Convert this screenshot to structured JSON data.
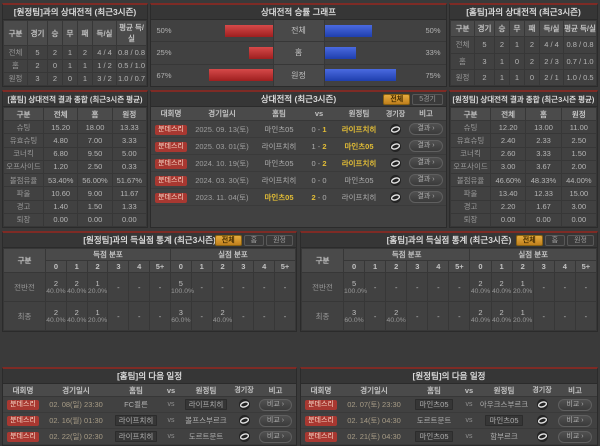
{
  "colors": {
    "accent_maroon": "#7e2b25",
    "bar_red": "#c03030",
    "bar_blue": "#3a5cd8",
    "winner_yellow": "#e2bd36",
    "league_badge": "#a83831",
    "active_filter": "#d9952c"
  },
  "common": {
    "vs": "vs",
    "dash": "-"
  },
  "cols": {
    "league": "대회명",
    "datetime": "경기일시",
    "home": "홈팀",
    "away": "원정팀",
    "venue": "경기장",
    "note": "비고",
    "group": "구분"
  },
  "record_home": {
    "title": "[원정팀]과의 상대전적 (최근3시즌)",
    "headers": [
      "구분",
      "경기",
      "승",
      "무",
      "패",
      "득/실",
      "평균 득/실"
    ],
    "rows": [
      {
        "label": "전체",
        "cells": [
          "5",
          "2",
          "1",
          "2",
          "4 / 4",
          "0.8 / 0.8"
        ]
      },
      {
        "label": "홈",
        "cells": [
          "2",
          "0",
          "1",
          "1",
          "1 / 2",
          "0.5 / 1.0"
        ]
      },
      {
        "label": "원정",
        "cells": [
          "3",
          "2",
          "0",
          "1",
          "3 / 2",
          "1.0 / 0.7"
        ]
      }
    ]
  },
  "winrate_graph": {
    "title": "상대전적 승률 그래프",
    "rows": [
      {
        "label": "전체",
        "home_pct_label": "50%",
        "home_pct": 50,
        "away_pct_label": "50%",
        "away_pct": 50
      },
      {
        "label": "홈",
        "home_pct_label": "25%",
        "home_pct": 25,
        "away_pct_label": "33%",
        "away_pct": 33
      },
      {
        "label": "원정",
        "home_pct_label": "67%",
        "home_pct": 67,
        "away_pct_label": "75%",
        "away_pct": 75
      }
    ]
  },
  "record_away": {
    "title": "[홈팀]과의 상대전적 (최근3시즌)",
    "headers": [
      "구분",
      "경기",
      "승",
      "무",
      "패",
      "득/실",
      "평균 득/실"
    ],
    "rows": [
      {
        "label": "전체",
        "cells": [
          "5",
          "2",
          "1",
          "2",
          "4 / 4",
          "0.8 / 0.8"
        ]
      },
      {
        "label": "홈",
        "cells": [
          "3",
          "1",
          "0",
          "2",
          "2 / 3",
          "0.7 / 1.0"
        ]
      },
      {
        "label": "원정",
        "cells": [
          "2",
          "1",
          "1",
          "0",
          "2 / 1",
          "1.0 / 0.5"
        ]
      }
    ]
  },
  "stats_home": {
    "title": "[홈팀] 상대전적 결과 종합 (최근3시즌 평균)",
    "headers": [
      "구분",
      "전체",
      "홈",
      "원정"
    ],
    "rows": [
      {
        "label": "슈팅",
        "cells": [
          "15.20",
          "18.00",
          "13.33"
        ]
      },
      {
        "label": "유효슈팅",
        "cells": [
          "4.80",
          "7.00",
          "3.33"
        ]
      },
      {
        "label": "코너킥",
        "cells": [
          "6.80",
          "9.50",
          "5.00"
        ]
      },
      {
        "label": "오프사이드",
        "cells": [
          "1.20",
          "2.50",
          "0.33"
        ]
      },
      {
        "label": "볼점유율",
        "cells": [
          "53.40%",
          "56.00%",
          "51.67%"
        ]
      },
      {
        "label": "파울",
        "cells": [
          "10.60",
          "9.00",
          "11.67"
        ]
      },
      {
        "label": "경고",
        "cells": [
          "1.40",
          "1.50",
          "1.33"
        ]
      },
      {
        "label": "퇴장",
        "cells": [
          "0.00",
          "0.00",
          "0.00"
        ]
      }
    ]
  },
  "stats_away": {
    "title": "[원정팀] 상대전적 결과 종합 (최근3시즌 평균)",
    "headers": [
      "구분",
      "전체",
      "홈",
      "원정"
    ],
    "rows": [
      {
        "label": "슈팅",
        "cells": [
          "12.20",
          "13.00",
          "11.00"
        ]
      },
      {
        "label": "유효슈팅",
        "cells": [
          "2.40",
          "2.33",
          "2.50"
        ]
      },
      {
        "label": "코너킥",
        "cells": [
          "2.60",
          "3.33",
          "1.50"
        ]
      },
      {
        "label": "오프사이드",
        "cells": [
          "3.00",
          "3.67",
          "2.00"
        ]
      },
      {
        "label": "볼점유율",
        "cells": [
          "46.60%",
          "48.33%",
          "44.00%"
        ]
      },
      {
        "label": "파울",
        "cells": [
          "13.40",
          "12.33",
          "15.00"
        ]
      },
      {
        "label": "경고",
        "cells": [
          "2.20",
          "1.67",
          "3.00"
        ]
      },
      {
        "label": "퇴장",
        "cells": [
          "0.00",
          "0.00",
          "0.00"
        ]
      }
    ]
  },
  "h2h": {
    "title": "상대전적 (최근3시즌)",
    "filter_all": "전체",
    "filter_5": "5경기",
    "note_btn": "결과 ›",
    "rows": [
      {
        "league": "분데스리",
        "date": "2025. 09. 13(토)",
        "home": "마인츠05",
        "hs": "0",
        "as": "1",
        "away": "라이프치히",
        "hw": false,
        "aw": true
      },
      {
        "league": "분데스리",
        "date": "2025. 03. 01(토)",
        "home": "라이프치히",
        "hs": "1",
        "as": "2",
        "away": "마인츠05",
        "hw": false,
        "aw": true
      },
      {
        "league": "분데스리",
        "date": "2024. 10. 19(토)",
        "home": "마인츠05",
        "hs": "0",
        "as": "2",
        "away": "라이프치히",
        "hw": false,
        "aw": true
      },
      {
        "league": "분데스리",
        "date": "2024. 03. 30(토)",
        "home": "라이프치히",
        "hs": "0",
        "as": "0",
        "away": "마인츠05",
        "hw": false,
        "aw": false
      },
      {
        "league": "분데스리",
        "date": "2023. 11. 04(토)",
        "home": "마인츠05",
        "hs": "2",
        "as": "0",
        "away": "라이프치히",
        "hw": true,
        "aw": false
      }
    ]
  },
  "goals_home": {
    "title": "[원정팀]과의 득실점 통계 (최근3시즌)",
    "filter_all": "전체",
    "filter_home": "홈",
    "filter_away": "원정",
    "scored_group": "득점 분포",
    "conceded_group": "실점 분포",
    "bins": [
      "0",
      "1",
      "2",
      "3",
      "4",
      "5+"
    ],
    "rows": [
      {
        "label": "전반전",
        "scored": [
          {
            "n": "2",
            "p": "40.0%"
          },
          {
            "n": "2",
            "p": "40.0%"
          },
          {
            "n": "1",
            "p": "20.0%"
          },
          {
            "n": "-",
            "p": ""
          },
          {
            "n": "-",
            "p": ""
          },
          {
            "n": "-",
            "p": ""
          }
        ],
        "conceded": [
          {
            "n": "5",
            "p": "100.0%"
          },
          {
            "n": "-",
            "p": ""
          },
          {
            "n": "-",
            "p": ""
          },
          {
            "n": "-",
            "p": ""
          },
          {
            "n": "-",
            "p": ""
          },
          {
            "n": "-",
            "p": ""
          }
        ]
      },
      {
        "label": "최종",
        "scored": [
          {
            "n": "2",
            "p": "40.0%"
          },
          {
            "n": "2",
            "p": "40.0%"
          },
          {
            "n": "1",
            "p": "20.0%"
          },
          {
            "n": "-",
            "p": ""
          },
          {
            "n": "-",
            "p": ""
          },
          {
            "n": "-",
            "p": ""
          }
        ],
        "conceded": [
          {
            "n": "3",
            "p": "60.0%"
          },
          {
            "n": "-",
            "p": ""
          },
          {
            "n": "2",
            "p": "40.0%"
          },
          {
            "n": "-",
            "p": ""
          },
          {
            "n": "-",
            "p": ""
          },
          {
            "n": "-",
            "p": ""
          }
        ]
      }
    ]
  },
  "goals_away": {
    "title": "[홈팀]과의 득실점 통계 (최근3시즌)",
    "filter_all": "전체",
    "filter_home": "홈",
    "filter_away": "원정",
    "scored_group": "득점 분포",
    "conceded_group": "실점 분포",
    "bins": [
      "0",
      "1",
      "2",
      "3",
      "4",
      "5+"
    ],
    "rows": [
      {
        "label": "전반전",
        "scored": [
          {
            "n": "5",
            "p": "100.0%"
          },
          {
            "n": "-",
            "p": ""
          },
          {
            "n": "-",
            "p": ""
          },
          {
            "n": "-",
            "p": ""
          },
          {
            "n": "-",
            "p": ""
          },
          {
            "n": "-",
            "p": ""
          }
        ],
        "conceded": [
          {
            "n": "2",
            "p": "40.0%"
          },
          {
            "n": "2",
            "p": "40.0%"
          },
          {
            "n": "1",
            "p": "20.0%"
          },
          {
            "n": "-",
            "p": ""
          },
          {
            "n": "-",
            "p": ""
          },
          {
            "n": "-",
            "p": ""
          }
        ]
      },
      {
        "label": "최종",
        "scored": [
          {
            "n": "3",
            "p": "60.0%"
          },
          {
            "n": "-",
            "p": ""
          },
          {
            "n": "2",
            "p": "40.0%"
          },
          {
            "n": "-",
            "p": ""
          },
          {
            "n": "-",
            "p": ""
          },
          {
            "n": "-",
            "p": ""
          }
        ],
        "conceded": [
          {
            "n": "2",
            "p": "40.0%"
          },
          {
            "n": "2",
            "p": "40.0%"
          },
          {
            "n": "1",
            "p": "20.0%"
          },
          {
            "n": "-",
            "p": ""
          },
          {
            "n": "-",
            "p": ""
          },
          {
            "n": "-",
            "p": ""
          }
        ]
      }
    ]
  },
  "sched_home": {
    "title": "[홈팀]의 다음 일정",
    "note_btn": "비교 ›",
    "rows": [
      {
        "league": "분데스리",
        "date": "02. 08(일) 23:30",
        "home": "FC쾰른",
        "away": "라이프치히",
        "hb": false,
        "ab": true
      },
      {
        "league": "분데스리",
        "date": "02. 16(월) 01:30",
        "home": "라이프치히",
        "away": "볼프스부르크",
        "hb": true,
        "ab": false
      },
      {
        "league": "분데스리",
        "date": "02. 22(일) 02:30",
        "home": "라이프치히",
        "away": "도르트문트",
        "hb": true,
        "ab": false
      }
    ]
  },
  "sched_away": {
    "title": "[원정팀]의 다음 일정",
    "note_btn": "비교 ›",
    "rows": [
      {
        "league": "분데스리",
        "date": "02. 07(토) 23:30",
        "home": "마인츠05",
        "away": "아우크스부르크",
        "hb": true,
        "ab": false
      },
      {
        "league": "분데스리",
        "date": "02. 14(토) 04:30",
        "home": "도르트문트",
        "away": "마인츠05",
        "hb": false,
        "ab": true
      },
      {
        "league": "분데스리",
        "date": "02. 21(토) 04:30",
        "home": "마인츠05",
        "away": "함부르크",
        "hb": true,
        "ab": false
      }
    ]
  }
}
